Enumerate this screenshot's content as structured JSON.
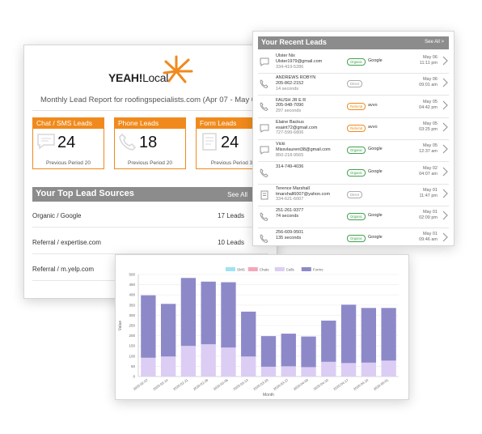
{
  "report": {
    "logo": {
      "yeah": "YEAH!",
      "local": "Local"
    },
    "title": "Monthly Lead Report for roofingspecialists.com (Apr 07 - May 06",
    "stats": [
      {
        "label": "Chat / SMS Leads",
        "value": "24",
        "previous": "Previous Period 20",
        "icon": "chat-icon"
      },
      {
        "label": "Phone Leads",
        "value": "18",
        "previous": "Previous Period 20",
        "icon": "phone-icon"
      },
      {
        "label": "Form Leads",
        "value": "24",
        "previous": "Previous Period 3",
        "icon": "form-icon"
      }
    ],
    "sources": {
      "title": "Your Top Lead Sources",
      "see_all": "See All",
      "rows": [
        {
          "name": "Organic / Google",
          "value": "17 Leads"
        },
        {
          "name": "Referral / expertise.com",
          "value": "10 Leads"
        },
        {
          "name": "Referral / m.yelp.com",
          "value": ""
        }
      ]
    },
    "accent": "#f08a1c"
  },
  "leads": {
    "title": "Your Recent Leads",
    "see_all": "See All >",
    "items": [
      {
        "icon": "chat-icon",
        "lines": [
          "Ulster Nix",
          "Ulster1979@gmail.com",
          "334-419-5286"
        ],
        "badge": "Organic",
        "badge_type": "organic",
        "source": "Google",
        "date": "May 06",
        "time": "11:11 pm"
      },
      {
        "icon": "phone-icon",
        "lines": [
          "ANDREWS ROBYN",
          "205-862-2152",
          "14 seconds"
        ],
        "badge": "Direct",
        "badge_type": "direct",
        "source": "",
        "date": "May 06",
        "time": "09:01 am"
      },
      {
        "icon": "phone-icon",
        "lines": [
          "FAUSH JR E R",
          "205-948-7090",
          "297 seconds"
        ],
        "badge": "Referral",
        "badge_type": "referral",
        "source": "avvo",
        "date": "May 05",
        "time": "04:42 pm"
      },
      {
        "icon": "chat-icon",
        "lines": [
          "Elaine Backus",
          "esaint72@gmail.com",
          "727-599-6806"
        ],
        "badge": "Referral",
        "badge_type": "referral",
        "source": "avvo",
        "date": "May 05",
        "time": "03:25 pm"
      },
      {
        "icon": "chat-icon",
        "lines": [
          "Vicki",
          "Missvlaurent38@gmail.com",
          "850-218-9565"
        ],
        "badge": "Organic",
        "badge_type": "organic",
        "source": "Google",
        "date": "May 05",
        "time": "12:37 am"
      },
      {
        "icon": "phone-icon",
        "lines": [
          "314-749-4036",
          "",
          ""
        ],
        "badge": "Organic",
        "badge_type": "organic",
        "source": "Google",
        "date": "May 02",
        "time": "04:07 am"
      },
      {
        "icon": "form-icon",
        "lines": [
          "Terence Marshall",
          "tmarshall6007@yahoo.com",
          "334-621-6007"
        ],
        "badge": "Direct",
        "badge_type": "direct",
        "source": "",
        "date": "May 01",
        "time": "11:47 pm"
      },
      {
        "icon": "phone-icon",
        "lines": [
          "251-261-9377",
          "74 seconds",
          ""
        ],
        "badge": "Organic",
        "badge_type": "organic",
        "source": "Google",
        "date": "May 01",
        "time": "02:09 pm"
      },
      {
        "icon": "phone-icon",
        "lines": [
          "256-609-9501",
          "135 seconds",
          ""
        ],
        "badge": "Organic",
        "badge_type": "organic",
        "source": "Google",
        "date": "May 01",
        "time": "09:46 am"
      }
    ]
  },
  "chart_data": {
    "type": "bar",
    "stacked": true,
    "categories": [
      "2020-02-07",
      "2020-02-14",
      "2020-02-21",
      "2020-02-28",
      "2020-03-06",
      "2020-03-13",
      "2020-03-20",
      "2020-03-27",
      "2020-04-03",
      "2020-04-10",
      "2020-04-17",
      "2020-04-24",
      "2020-05-01"
    ],
    "series": [
      {
        "name": "SMS",
        "color": "#9fe3f2",
        "values": [
          0,
          0,
          0,
          0,
          0,
          0,
          0,
          0,
          0,
          0,
          0,
          0,
          0
        ]
      },
      {
        "name": "Chats",
        "color": "#f6a5b9",
        "values": [
          0,
          0,
          0,
          0,
          0,
          0,
          0,
          0,
          0,
          0,
          0,
          0,
          0
        ]
      },
      {
        "name": "Calls",
        "color": "#dccdf5",
        "values": [
          92,
          98,
          150,
          158,
          142,
          98,
          48,
          50,
          46,
          72,
          66,
          68,
          78
        ]
      },
      {
        "name": "Forms",
        "color": "#8d89c9",
        "values": [
          306,
          258,
          333,
          307,
          320,
          220,
          150,
          160,
          150,
          202,
          286,
          268,
          258
        ]
      }
    ],
    "xlabel": "Month",
    "ylabel": "Value",
    "ylim": [
      0,
      500
    ],
    "yticks": [
      0,
      50,
      100,
      150,
      200,
      250,
      300,
      350,
      400,
      450,
      500
    ],
    "grid": true,
    "legend": "top"
  }
}
